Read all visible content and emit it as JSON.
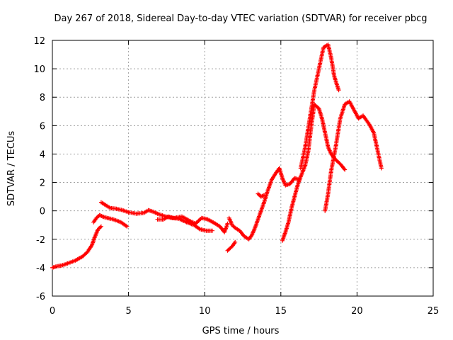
{
  "chart_data": {
    "type": "scatter",
    "title": "Day 267 of 2018, Sidereal Day-to-day VTEC variation (SDTVAR) for receiver pbcg",
    "xlabel": "GPS time / hours",
    "ylabel": "SDTVAR / TECUs",
    "xlim": [
      0,
      25
    ],
    "ylim": [
      -6,
      12
    ],
    "xticks": [
      0,
      5,
      10,
      15,
      20,
      25
    ],
    "yticks": [
      -6,
      -4,
      -2,
      0,
      2,
      4,
      6,
      8,
      10,
      12
    ],
    "grid": true,
    "marker": "+",
    "series": [
      {
        "name": "pbcg",
        "color": "#ff0000",
        "segments": [
          [
            [
              0.0,
              -4.0
            ],
            [
              0.3,
              -3.9
            ],
            [
              0.6,
              -3.85
            ],
            [
              1.0,
              -3.7
            ],
            [
              1.5,
              -3.5
            ],
            [
              2.0,
              -3.2
            ],
            [
              2.3,
              -2.9
            ],
            [
              2.6,
              -2.4
            ],
            [
              2.8,
              -1.8
            ],
            [
              3.0,
              -1.3
            ],
            [
              3.2,
              -1.1
            ]
          ],
          [
            [
              2.7,
              -0.8
            ],
            [
              2.9,
              -0.5
            ],
            [
              3.1,
              -0.3
            ],
            [
              3.3,
              -0.4
            ],
            [
              3.6,
              -0.5
            ],
            [
              4.0,
              -0.6
            ],
            [
              4.5,
              -0.8
            ],
            [
              4.9,
              -1.1
            ]
          ],
          [
            [
              3.2,
              0.6
            ],
            [
              3.5,
              0.4
            ],
            [
              3.8,
              0.2
            ],
            [
              4.2,
              0.15
            ],
            [
              4.6,
              0.05
            ],
            [
              5.0,
              -0.1
            ],
            [
              5.5,
              -0.2
            ],
            [
              6.0,
              -0.15
            ],
            [
              6.3,
              0.05
            ],
            [
              6.6,
              -0.05
            ],
            [
              6.9,
              -0.2
            ],
            [
              7.3,
              -0.35
            ],
            [
              7.8,
              -0.5
            ],
            [
              8.3,
              -0.55
            ],
            [
              8.8,
              -0.8
            ],
            [
              9.3,
              -1.0
            ],
            [
              9.7,
              -1.3
            ],
            [
              10.1,
              -1.4
            ],
            [
              10.5,
              -1.4
            ]
          ],
          [
            [
              6.9,
              -0.6
            ],
            [
              7.3,
              -0.6
            ],
            [
              7.6,
              -0.4
            ],
            [
              8.0,
              -0.5
            ],
            [
              8.5,
              -0.4
            ],
            [
              9.0,
              -0.7
            ],
            [
              9.4,
              -0.9
            ],
            [
              9.8,
              -0.5
            ],
            [
              10.2,
              -0.6
            ],
            [
              10.7,
              -0.9
            ],
            [
              11.0,
              -1.1
            ],
            [
              11.3,
              -1.5
            ],
            [
              11.5,
              -0.9
            ]
          ],
          [
            [
              11.6,
              -0.5
            ],
            [
              11.8,
              -1.0
            ],
            [
              12.0,
              -1.2
            ],
            [
              12.3,
              -1.4
            ],
            [
              12.6,
              -1.8
            ],
            [
              12.9,
              -2.0
            ],
            [
              13.1,
              -1.7
            ],
            [
              13.3,
              -1.2
            ],
            [
              13.6,
              -0.3
            ],
            [
              13.9,
              0.6
            ],
            [
              14.1,
              1.3
            ],
            [
              14.4,
              2.2
            ],
            [
              14.7,
              2.7
            ],
            [
              14.9,
              3.0
            ],
            [
              15.1,
              2.3
            ],
            [
              15.3,
              1.8
            ],
            [
              15.6,
              1.9
            ],
            [
              15.9,
              2.3
            ],
            [
              16.2,
              2.2
            ]
          ],
          [
            [
              11.5,
              -2.8
            ],
            [
              11.8,
              -2.5
            ],
            [
              12.0,
              -2.2
            ]
          ],
          [
            [
              15.1,
              -2.1
            ],
            [
              15.3,
              -1.5
            ],
            [
              15.5,
              -0.8
            ],
            [
              15.7,
              0.2
            ],
            [
              15.9,
              1.0
            ],
            [
              16.1,
              1.8
            ],
            [
              16.3,
              2.4
            ],
            [
              16.6,
              3.2
            ],
            [
              16.8,
              4.2
            ],
            [
              17.0,
              6.0
            ],
            [
              17.2,
              7.5
            ],
            [
              17.5,
              7.2
            ],
            [
              17.7,
              6.5
            ],
            [
              17.9,
              5.5
            ],
            [
              18.1,
              4.5
            ],
            [
              18.3,
              4.0
            ],
            [
              18.6,
              3.6
            ],
            [
              18.9,
              3.3
            ],
            [
              19.2,
              2.9
            ]
          ],
          [
            [
              16.3,
              3.0
            ],
            [
              16.6,
              4.5
            ],
            [
              16.9,
              6.5
            ],
            [
              17.2,
              8.5
            ],
            [
              17.5,
              10.0
            ],
            [
              17.8,
              11.5
            ],
            [
              18.1,
              11.7
            ],
            [
              18.3,
              10.8
            ],
            [
              18.5,
              9.5
            ],
            [
              18.7,
              8.8
            ],
            [
              18.8,
              8.5
            ]
          ],
          [
            [
              17.9,
              0.0
            ],
            [
              18.1,
              1.2
            ],
            [
              18.3,
              2.8
            ],
            [
              18.6,
              4.5
            ],
            [
              18.9,
              6.5
            ],
            [
              19.2,
              7.5
            ],
            [
              19.5,
              7.7
            ],
            [
              19.8,
              7.1
            ],
            [
              20.1,
              6.5
            ],
            [
              20.4,
              6.7
            ],
            [
              20.8,
              6.1
            ],
            [
              21.1,
              5.5
            ],
            [
              21.3,
              4.5
            ],
            [
              21.6,
              3.0
            ]
          ],
          [
            [
              13.5,
              1.2
            ],
            [
              13.7,
              1.0
            ],
            [
              13.9,
              1.1
            ]
          ]
        ]
      }
    ]
  }
}
